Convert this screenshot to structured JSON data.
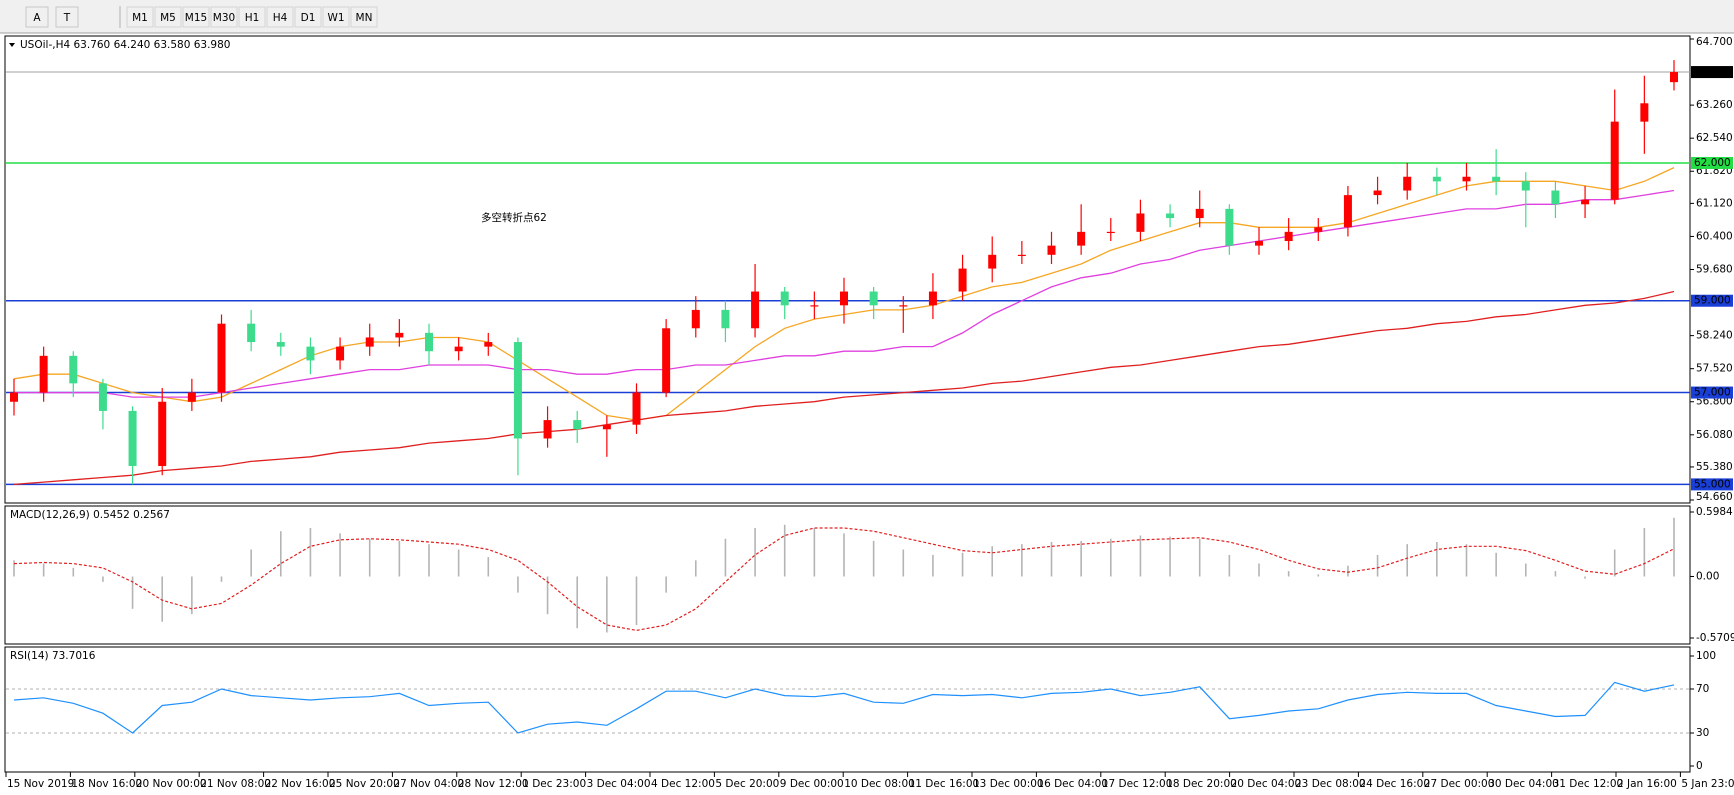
{
  "toolbar": {
    "tools": [
      "A",
      "T"
    ],
    "timeframes": [
      "M1",
      "M5",
      "M15",
      "M30",
      "H1",
      "H4",
      "D1",
      "W1",
      "MN"
    ]
  },
  "chart_data": [
    {
      "type": "candlestick",
      "title": "USOil-,H4  63.760 64.240 63.580 63.980",
      "annotation": "多空转折点62",
      "annotation_color": "#ff2020",
      "up_color": "#ff0000",
      "down_color": "#3cdc8c",
      "ylim": [
        54.66,
        64.7
      ],
      "yticks": [
        {
          "value": 64.7,
          "label": "64.700"
        },
        {
          "value": 63.26,
          "label": "63.260"
        },
        {
          "value": 62.54,
          "label": "62.540"
        },
        {
          "value": 61.82,
          "label": "61.820"
        },
        {
          "value": 61.12,
          "label": "61.120"
        },
        {
          "value": 60.4,
          "label": "60.400"
        },
        {
          "value": 59.68,
          "label": "59.680"
        },
        {
          "value": 58.24,
          "label": "58.240"
        },
        {
          "value": 57.52,
          "label": "57.520"
        },
        {
          "value": 56.8,
          "label": "56.800"
        },
        {
          "value": 56.08,
          "label": "56.080"
        },
        {
          "value": 55.38,
          "label": "55.380"
        },
        {
          "value": 54.66,
          "label": "54.660"
        }
      ],
      "hlines": [
        {
          "value": 63.98,
          "label": "63.980",
          "color": "#a0a0a0",
          "box": "#000000"
        },
        {
          "value": 62,
          "label": "62.000",
          "color": "#22dd44",
          "box": "#22dd44"
        },
        {
          "value": 59,
          "label": "59.000",
          "color": "#1a3fd6",
          "box": "#1a3fd6"
        },
        {
          "value": 57,
          "label": "57.000",
          "color": "#1a3fd6",
          "box": "#1a3fd6"
        },
        {
          "value": 55,
          "label": "55.000",
          "color": "#1a3fd6",
          "box": "#1a3fd6"
        }
      ],
      "open": [
        56.8,
        57.0,
        57.8,
        57.2,
        56.6,
        55.4,
        56.8,
        57.0,
        58.5,
        58.1,
        58.0,
        57.7,
        58.0,
        58.2,
        58.3,
        57.9,
        58.0,
        58.1,
        56.0,
        56.4,
        56.2,
        56.3,
        57.0,
        58.4,
        58.8,
        58.4,
        59.2,
        58.9,
        58.9,
        59.2,
        58.9,
        58.9,
        59.2,
        59.7,
        60.0,
        60.0,
        60.2,
        60.5,
        60.5,
        60.9,
        60.8,
        61.0,
        60.2,
        60.3,
        60.5,
        60.6,
        61.3,
        61.4,
        61.7,
        61.6,
        61.7,
        61.6,
        61.4,
        61.1,
        61.2,
        62.9,
        63.76
      ],
      "high": [
        57.3,
        58.0,
        57.9,
        57.3,
        56.7,
        57.1,
        57.3,
        58.7,
        58.8,
        58.3,
        58.2,
        58.2,
        58.5,
        58.6,
        58.5,
        58.2,
        58.3,
        58.2,
        56.7,
        56.6,
        56.5,
        57.2,
        58.6,
        59.1,
        59.0,
        59.8,
        59.3,
        59.2,
        59.5,
        59.3,
        59.1,
        59.6,
        60.0,
        60.4,
        60.3,
        60.5,
        61.1,
        60.8,
        61.2,
        61.1,
        61.4,
        61.1,
        60.6,
        60.8,
        60.8,
        61.5,
        61.7,
        62.0,
        61.9,
        62.0,
        62.3,
        61.8,
        61.6,
        61.5,
        63.6,
        63.9,
        64.24
      ],
      "low": [
        56.5,
        56.8,
        56.9,
        56.2,
        55.0,
        55.2,
        56.6,
        56.8,
        57.9,
        57.8,
        57.4,
        57.5,
        57.8,
        58.0,
        57.6,
        57.7,
        57.8,
        55.2,
        55.8,
        55.9,
        55.6,
        56.1,
        56.9,
        58.2,
        58.1,
        58.2,
        58.6,
        58.6,
        58.5,
        58.6,
        58.3,
        58.6,
        59.0,
        59.4,
        59.8,
        59.8,
        60.0,
        60.3,
        60.3,
        60.6,
        60.6,
        60.0,
        60.0,
        60.1,
        60.3,
        60.4,
        61.1,
        61.2,
        61.3,
        61.4,
        61.3,
        60.6,
        60.8,
        60.8,
        61.1,
        62.2,
        63.58
      ],
      "close": [
        57.0,
        57.8,
        57.2,
        56.6,
        55.4,
        56.8,
        57.0,
        58.5,
        58.1,
        58.0,
        57.7,
        58.0,
        58.2,
        58.3,
        57.9,
        58.0,
        58.1,
        56.0,
        56.4,
        56.2,
        56.3,
        57.0,
        58.4,
        58.8,
        58.4,
        59.2,
        58.9,
        58.9,
        59.2,
        58.9,
        58.9,
        59.2,
        59.7,
        60.0,
        60.0,
        60.2,
        60.5,
        60.5,
        60.9,
        60.8,
        61.0,
        60.2,
        60.3,
        60.5,
        60.6,
        61.3,
        61.4,
        61.7,
        61.6,
        61.7,
        61.6,
        61.4,
        61.1,
        61.2,
        62.9,
        63.3,
        63.98
      ],
      "lines": [
        {
          "color": "#f5a623",
          "values": [
            57.3,
            57.4,
            57.4,
            57.2,
            57.0,
            56.9,
            56.8,
            56.9,
            57.2,
            57.5,
            57.8,
            58.0,
            58.1,
            58.1,
            58.2,
            58.2,
            58.1,
            57.7,
            57.3,
            56.9,
            56.5,
            56.4,
            56.5,
            57.0,
            57.5,
            58.0,
            58.4,
            58.6,
            58.7,
            58.8,
            58.8,
            58.9,
            59.1,
            59.3,
            59.4,
            59.6,
            59.8,
            60.1,
            60.3,
            60.5,
            60.7,
            60.7,
            60.6,
            60.6,
            60.6,
            60.7,
            60.9,
            61.1,
            61.3,
            61.5,
            61.6,
            61.6,
            61.6,
            61.5,
            61.4,
            61.6,
            61.9
          ]
        },
        {
          "color": "#e040e0",
          "values": [
            57.0,
            57.0,
            57.0,
            57.0,
            56.9,
            56.9,
            56.9,
            57.0,
            57.1,
            57.2,
            57.3,
            57.4,
            57.5,
            57.5,
            57.6,
            57.6,
            57.6,
            57.5,
            57.5,
            57.4,
            57.4,
            57.5,
            57.5,
            57.6,
            57.6,
            57.7,
            57.8,
            57.8,
            57.9,
            57.9,
            58.0,
            58.0,
            58.3,
            58.7,
            59.0,
            59.3,
            59.5,
            59.6,
            59.8,
            59.9,
            60.1,
            60.2,
            60.3,
            60.4,
            60.5,
            60.6,
            60.7,
            60.8,
            60.9,
            61.0,
            61.0,
            61.1,
            61.1,
            61.2,
            61.2,
            61.3,
            61.4
          ]
        },
        {
          "color": "#e02020",
          "values": [
            55.0,
            55.05,
            55.1,
            55.15,
            55.2,
            55.3,
            55.35,
            55.4,
            55.5,
            55.55,
            55.6,
            55.7,
            55.75,
            55.8,
            55.9,
            55.95,
            56.0,
            56.1,
            56.15,
            56.2,
            56.3,
            56.4,
            56.5,
            56.55,
            56.6,
            56.7,
            56.75,
            56.8,
            56.9,
            56.95,
            57.0,
            57.05,
            57.1,
            57.2,
            57.25,
            57.35,
            57.45,
            57.55,
            57.6,
            57.7,
            57.8,
            57.9,
            58.0,
            58.05,
            58.15,
            58.25,
            58.35,
            58.4,
            58.5,
            58.55,
            58.65,
            58.7,
            58.8,
            58.9,
            58.95,
            59.05,
            59.2
          ]
        }
      ],
      "xtick_labels": [
        "15 Nov 2019",
        "18 Nov 16:00",
        "20 Nov 00:00",
        "21 Nov 08:00",
        "22 Nov 16:00",
        "25 Nov 20:00",
        "27 Nov 04:00",
        "28 Nov 12:00",
        "1 Dec 23:00",
        "3 Dec 04:00",
        "4 Dec 12:00",
        "5 Dec 20:00",
        "9 Dec 00:00",
        "10 Dec 08:00",
        "11 Dec 16:00",
        "13 Dec 00:00",
        "16 Dec 04:00",
        "17 Dec 12:00",
        "18 Dec 20:00",
        "20 Dec 04:00",
        "23 Dec 08:00",
        "24 Dec 16:00",
        "27 Dec 00:00",
        "30 Dec 04:00",
        "31 Dec 12:00",
        "2 Jan 16:00",
        "5 Jan 23:00"
      ]
    },
    {
      "type": "macd",
      "title": "MACD(12,26,9) 0.5452 0.2567",
      "ylim": [
        -0.5709,
        0.5984
      ],
      "yticks": [
        0.5984,
        {
          "value": 0,
          "label": "0.00"
        },
        -0.5709
      ],
      "bar_color": "#b4b4b4",
      "signal_color": "#e02020",
      "values": [
        0.15,
        0.12,
        0.08,
        -0.05,
        -0.3,
        -0.42,
        -0.35,
        -0.05,
        0.25,
        0.42,
        0.45,
        0.4,
        0.35,
        0.33,
        0.3,
        0.25,
        0.18,
        -0.15,
        -0.35,
        -0.48,
        -0.52,
        -0.45,
        -0.15,
        0.15,
        0.35,
        0.45,
        0.48,
        0.45,
        0.4,
        0.33,
        0.25,
        0.2,
        0.22,
        0.28,
        0.3,
        0.32,
        0.33,
        0.35,
        0.38,
        0.37,
        0.35,
        0.2,
        0.12,
        0.05,
        0.02,
        0.1,
        0.2,
        0.3,
        0.32,
        0.3,
        0.22,
        0.12,
        0.05,
        -0.02,
        0.25,
        0.45,
        0.5452
      ],
      "signal": [
        0.12,
        0.13,
        0.12,
        0.08,
        -0.05,
        -0.22,
        -0.3,
        -0.25,
        -0.08,
        0.12,
        0.28,
        0.34,
        0.35,
        0.34,
        0.32,
        0.3,
        0.25,
        0.15,
        -0.05,
        -0.28,
        -0.45,
        -0.5,
        -0.45,
        -0.3,
        -0.05,
        0.2,
        0.38,
        0.45,
        0.45,
        0.42,
        0.36,
        0.3,
        0.24,
        0.22,
        0.25,
        0.28,
        0.3,
        0.32,
        0.34,
        0.35,
        0.36,
        0.32,
        0.25,
        0.15,
        0.07,
        0.04,
        0.08,
        0.17,
        0.25,
        0.28,
        0.28,
        0.24,
        0.15,
        0.05,
        0.02,
        0.12,
        0.2567
      ]
    },
    {
      "type": "rsi",
      "title": "RSI(14) 73.7016",
      "ylim": [
        0,
        100
      ],
      "yticks": [
        100,
        70,
        30,
        0
      ],
      "levels": [
        70,
        30
      ],
      "color": "#1e90ff",
      "values": [
        60,
        62,
        57,
        48,
        30,
        55,
        58,
        70,
        64,
        62,
        60,
        62,
        63,
        66,
        55,
        57,
        58,
        30,
        38,
        40,
        37,
        52,
        68,
        68,
        62,
        70,
        64,
        63,
        66,
        58,
        57,
        65,
        64,
        65,
        62,
        66,
        67,
        70,
        64,
        67,
        72,
        43,
        46,
        50,
        52,
        60,
        65,
        67,
        66,
        66,
        55,
        50,
        45,
        46,
        76,
        68,
        73.7
      ]
    }
  ]
}
